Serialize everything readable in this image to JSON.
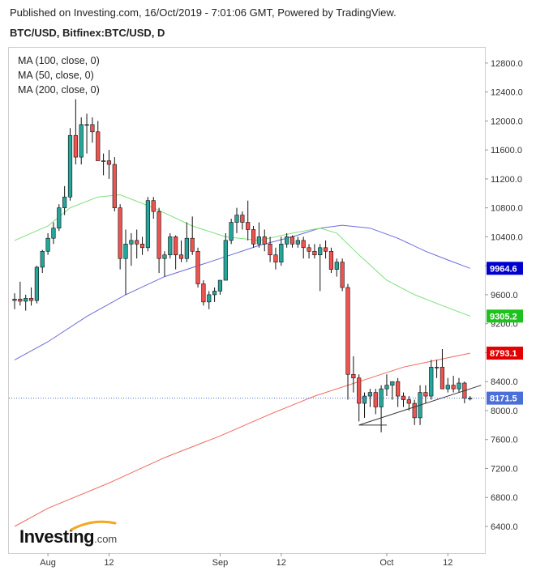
{
  "header": {
    "published": "Published on Investing.com, 16/Oct/2019 - 7:01:06 GMT, Powered by TradingView.",
    "symbol": "BTC/USD, Bitfinex:BTC/USD, D"
  },
  "legend": [
    "MA (100, close, 0)",
    "MA (50, close, 0)",
    "MA (200, close, 0)"
  ],
  "branding": {
    "name": "Investing",
    "suffix": ".com"
  },
  "colors": {
    "up": "#26a69a",
    "down": "#ef5350",
    "ma50": "#7ee07e",
    "ma100": "#6b6bdd",
    "ma200": "#f0685f",
    "badge_current": "#4a6fd8",
    "badge_ma100": "#0000cc",
    "badge_ma50": "#1ec21e",
    "badge_ma200": "#e00000"
  },
  "chart_data": {
    "type": "candlestick",
    "ylim": [
      6200,
      13000
    ],
    "yticks": [
      6400,
      6800,
      7200,
      7600,
      8000,
      8400,
      8800,
      9200,
      9600,
      10000,
      10400,
      10800,
      11200,
      11600,
      12000,
      12400,
      12800
    ],
    "xticks": [
      {
        "label": "Aug",
        "date": "2019-08-01"
      },
      {
        "label": "12",
        "date": "2019-08-12"
      },
      {
        "label": "Sep",
        "date": "2019-09-01"
      },
      {
        "label": "12",
        "date": "2019-09-12"
      },
      {
        "label": "Oct",
        "date": "2019-10-01"
      },
      {
        "label": "12",
        "date": "2019-10-12"
      }
    ],
    "date_start": "2019-07-26",
    "price_badges": [
      {
        "name": "ma100-value",
        "value": "9964.6",
        "y": 9964.6,
        "color": "#0000cc"
      },
      {
        "name": "ma50-value",
        "value": "9305.2",
        "y": 9305.2,
        "color": "#1ec21e"
      },
      {
        "name": "ma200-value",
        "value": "8793.1",
        "y": 8793.1,
        "color": "#e00000"
      },
      {
        "name": "last-price",
        "value": "8171.5",
        "y": 8171.5,
        "color": "#4a6fd8"
      }
    ],
    "last_price": 8171.5,
    "candles": [
      {
        "date": "2019-07-26",
        "o": 9520,
        "h": 9620,
        "l": 9400,
        "c": 9540
      },
      {
        "date": "2019-07-27",
        "o": 9540,
        "h": 9780,
        "l": 9450,
        "c": 9510
      },
      {
        "date": "2019-07-28",
        "o": 9510,
        "h": 9600,
        "l": 9380,
        "c": 9550
      },
      {
        "date": "2019-07-29",
        "o": 9550,
        "h": 9700,
        "l": 9450,
        "c": 9520
      },
      {
        "date": "2019-07-30",
        "o": 9520,
        "h": 10000,
        "l": 9480,
        "c": 9980
      },
      {
        "date": "2019-07-31",
        "o": 9980,
        "h": 10220,
        "l": 9900,
        "c": 10200
      },
      {
        "date": "2019-08-01",
        "o": 10200,
        "h": 10450,
        "l": 10150,
        "c": 10380
      },
      {
        "date": "2019-08-02",
        "o": 10380,
        "h": 10600,
        "l": 10300,
        "c": 10520
      },
      {
        "date": "2019-08-03",
        "o": 10520,
        "h": 10850,
        "l": 10480,
        "c": 10800
      },
      {
        "date": "2019-08-04",
        "o": 10800,
        "h": 11100,
        "l": 10700,
        "c": 10950
      },
      {
        "date": "2019-08-05",
        "o": 10950,
        "h": 11900,
        "l": 10900,
        "c": 11800
      },
      {
        "date": "2019-08-06",
        "o": 11800,
        "h": 12300,
        "l": 11400,
        "c": 11500
      },
      {
        "date": "2019-08-07",
        "o": 11500,
        "h": 12050,
        "l": 11400,
        "c": 11950
      },
      {
        "date": "2019-08-08",
        "o": 11950,
        "h": 12100,
        "l": 11550,
        "c": 11950
      },
      {
        "date": "2019-08-09",
        "o": 11950,
        "h": 12050,
        "l": 11700,
        "c": 11850
      },
      {
        "date": "2019-08-10",
        "o": 11850,
        "h": 12000,
        "l": 11450,
        "c": 11450
      },
      {
        "date": "2019-08-11",
        "o": 11450,
        "h": 11550,
        "l": 11250,
        "c": 11450
      },
      {
        "date": "2019-08-12",
        "o": 11450,
        "h": 11600,
        "l": 11200,
        "c": 11400
      },
      {
        "date": "2019-08-13",
        "o": 11400,
        "h": 11500,
        "l": 10750,
        "c": 10800
      },
      {
        "date": "2019-08-14",
        "o": 10800,
        "h": 10850,
        "l": 9950,
        "c": 10100
      },
      {
        "date": "2019-08-15",
        "o": 10100,
        "h": 10500,
        "l": 9600,
        "c": 10300
      },
      {
        "date": "2019-08-16",
        "o": 10300,
        "h": 10450,
        "l": 10000,
        "c": 10350
      },
      {
        "date": "2019-08-17",
        "o": 10350,
        "h": 10500,
        "l": 10100,
        "c": 10300
      },
      {
        "date": "2019-08-18",
        "o": 10300,
        "h": 10400,
        "l": 10150,
        "c": 10250
      },
      {
        "date": "2019-08-19",
        "o": 10250,
        "h": 10950,
        "l": 10200,
        "c": 10900
      },
      {
        "date": "2019-08-20",
        "o": 10900,
        "h": 10950,
        "l": 10650,
        "c": 10750
      },
      {
        "date": "2019-08-21",
        "o": 10750,
        "h": 10800,
        "l": 9900,
        "c": 10100
      },
      {
        "date": "2019-08-22",
        "o": 10100,
        "h": 10200,
        "l": 9850,
        "c": 10150
      },
      {
        "date": "2019-08-23",
        "o": 10150,
        "h": 10450,
        "l": 10100,
        "c": 10400
      },
      {
        "date": "2019-08-24",
        "o": 10400,
        "h": 10420,
        "l": 9950,
        "c": 10150
      },
      {
        "date": "2019-08-25",
        "o": 10150,
        "h": 10350,
        "l": 10050,
        "c": 10100
      },
      {
        "date": "2019-08-26",
        "o": 10100,
        "h": 10600,
        "l": 10050,
        "c": 10380
      },
      {
        "date": "2019-08-27",
        "o": 10380,
        "h": 10680,
        "l": 10150,
        "c": 10200
      },
      {
        "date": "2019-08-28",
        "o": 10200,
        "h": 10250,
        "l": 9700,
        "c": 9750
      },
      {
        "date": "2019-08-29",
        "o": 9750,
        "h": 9800,
        "l": 9450,
        "c": 9500
      },
      {
        "date": "2019-08-30",
        "o": 9500,
        "h": 9650,
        "l": 9400,
        "c": 9600
      },
      {
        "date": "2019-08-31",
        "o": 9600,
        "h": 9700,
        "l": 9500,
        "c": 9650
      },
      {
        "date": "2019-09-01",
        "o": 9650,
        "h": 9800,
        "l": 9600,
        "c": 9800
      },
      {
        "date": "2019-09-02",
        "o": 9800,
        "h": 10450,
        "l": 9800,
        "c": 10350
      },
      {
        "date": "2019-09-03",
        "o": 10350,
        "h": 10650,
        "l": 10300,
        "c": 10600
      },
      {
        "date": "2019-09-04",
        "o": 10600,
        "h": 10800,
        "l": 10450,
        "c": 10700
      },
      {
        "date": "2019-09-05",
        "o": 10700,
        "h": 10750,
        "l": 10500,
        "c": 10600
      },
      {
        "date": "2019-09-06",
        "o": 10600,
        "h": 10900,
        "l": 10350,
        "c": 10500
      },
      {
        "date": "2019-09-07",
        "o": 10500,
        "h": 10550,
        "l": 10250,
        "c": 10300
      },
      {
        "date": "2019-09-08",
        "o": 10300,
        "h": 10600,
        "l": 10250,
        "c": 10400
      },
      {
        "date": "2019-09-09",
        "o": 10400,
        "h": 10500,
        "l": 10200,
        "c": 10300
      },
      {
        "date": "2019-09-10",
        "o": 10300,
        "h": 10400,
        "l": 10050,
        "c": 10150
      },
      {
        "date": "2019-09-11",
        "o": 10150,
        "h": 10250,
        "l": 9950,
        "c": 10050
      },
      {
        "date": "2019-09-12",
        "o": 10050,
        "h": 10400,
        "l": 10000,
        "c": 10300
      },
      {
        "date": "2019-09-13",
        "o": 10300,
        "h": 10450,
        "l": 10250,
        "c": 10400
      },
      {
        "date": "2019-09-14",
        "o": 10400,
        "h": 10420,
        "l": 10250,
        "c": 10300
      },
      {
        "date": "2019-09-15",
        "o": 10300,
        "h": 10400,
        "l": 10250,
        "c": 10350
      },
      {
        "date": "2019-09-16",
        "o": 10350,
        "h": 10400,
        "l": 10100,
        "c": 10250
      },
      {
        "date": "2019-09-17",
        "o": 10250,
        "h": 10300,
        "l": 10100,
        "c": 10200
      },
      {
        "date": "2019-09-18",
        "o": 10200,
        "h": 10300,
        "l": 10100,
        "c": 10150
      },
      {
        "date": "2019-09-19",
        "o": 10150,
        "h": 10300,
        "l": 9650,
        "c": 10250
      },
      {
        "date": "2019-09-20",
        "o": 10250,
        "h": 10350,
        "l": 10100,
        "c": 10200
      },
      {
        "date": "2019-09-21",
        "o": 10200,
        "h": 10250,
        "l": 9900,
        "c": 9950
      },
      {
        "date": "2019-09-22",
        "o": 9950,
        "h": 10100,
        "l": 9850,
        "c": 10050
      },
      {
        "date": "2019-09-23",
        "o": 10050,
        "h": 10100,
        "l": 9650,
        "c": 9700
      },
      {
        "date": "2019-09-24",
        "o": 9700,
        "h": 9750,
        "l": 8150,
        "c": 8500
      },
      {
        "date": "2019-09-25",
        "o": 8500,
        "h": 8750,
        "l": 8250,
        "c": 8450
      },
      {
        "date": "2019-09-26",
        "o": 8450,
        "h": 8500,
        "l": 7850,
        "c": 8100
      },
      {
        "date": "2019-09-27",
        "o": 8100,
        "h": 8250,
        "l": 7900,
        "c": 8200
      },
      {
        "date": "2019-09-28",
        "o": 8200,
        "h": 8300,
        "l": 8050,
        "c": 8250
      },
      {
        "date": "2019-09-29",
        "o": 8250,
        "h": 8300,
        "l": 7950,
        "c": 8050
      },
      {
        "date": "2019-09-30",
        "o": 8050,
        "h": 8350,
        "l": 7700,
        "c": 8300
      },
      {
        "date": "2019-10-01",
        "o": 8300,
        "h": 8500,
        "l": 8200,
        "c": 8350
      },
      {
        "date": "2019-10-02",
        "o": 8350,
        "h": 8400,
        "l": 8150,
        "c": 8400
      },
      {
        "date": "2019-10-03",
        "o": 8400,
        "h": 8450,
        "l": 8050,
        "c": 8200
      },
      {
        "date": "2019-10-04",
        "o": 8200,
        "h": 8250,
        "l": 8050,
        "c": 8150
      },
      {
        "date": "2019-10-05",
        "o": 8150,
        "h": 8200,
        "l": 8000,
        "c": 8100
      },
      {
        "date": "2019-10-06",
        "o": 8100,
        "h": 8150,
        "l": 7800,
        "c": 7900
      },
      {
        "date": "2019-10-07",
        "o": 7900,
        "h": 8350,
        "l": 7800,
        "c": 8250
      },
      {
        "date": "2019-10-08",
        "o": 8250,
        "h": 8350,
        "l": 8100,
        "c": 8200
      },
      {
        "date": "2019-10-09",
        "o": 8200,
        "h": 8700,
        "l": 8150,
        "c": 8600
      },
      {
        "date": "2019-10-10",
        "o": 8600,
        "h": 8700,
        "l": 8450,
        "c": 8600
      },
      {
        "date": "2019-10-11",
        "o": 8600,
        "h": 8850,
        "l": 8300,
        "c": 8300
      },
      {
        "date": "2019-10-12",
        "o": 8300,
        "h": 8450,
        "l": 8250,
        "c": 8350
      },
      {
        "date": "2019-10-13",
        "o": 8350,
        "h": 8480,
        "l": 8250,
        "c": 8300
      },
      {
        "date": "2019-10-14",
        "o": 8300,
        "h": 8450,
        "l": 8250,
        "c": 8380
      },
      {
        "date": "2019-10-15",
        "o": 8380,
        "h": 8400,
        "l": 8100,
        "c": 8170
      },
      {
        "date": "2019-10-16",
        "o": 8170,
        "h": 8200,
        "l": 8140,
        "c": 8171.5
      }
    ],
    "ma50": [
      {
        "date": "2019-07-26",
        "v": 10350
      },
      {
        "date": "2019-08-01",
        "v": 10550
      },
      {
        "date": "2019-08-05",
        "v": 10800
      },
      {
        "date": "2019-08-10",
        "v": 10950
      },
      {
        "date": "2019-08-14",
        "v": 10980
      },
      {
        "date": "2019-08-20",
        "v": 10800
      },
      {
        "date": "2019-08-27",
        "v": 10550
      },
      {
        "date": "2019-09-02",
        "v": 10400
      },
      {
        "date": "2019-09-08",
        "v": 10350
      },
      {
        "date": "2019-09-14",
        "v": 10450
      },
      {
        "date": "2019-09-19",
        "v": 10520
      },
      {
        "date": "2019-09-22",
        "v": 10450
      },
      {
        "date": "2019-09-26",
        "v": 10150
      },
      {
        "date": "2019-10-01",
        "v": 9800
      },
      {
        "date": "2019-10-06",
        "v": 9600
      },
      {
        "date": "2019-10-11",
        "v": 9450
      },
      {
        "date": "2019-10-16",
        "v": 9305.2
      }
    ],
    "ma100": [
      {
        "date": "2019-07-26",
        "v": 8700
      },
      {
        "date": "2019-08-01",
        "v": 8950
      },
      {
        "date": "2019-08-08",
        "v": 9300
      },
      {
        "date": "2019-08-15",
        "v": 9600
      },
      {
        "date": "2019-08-22",
        "v": 9850
      },
      {
        "date": "2019-09-01",
        "v": 10100
      },
      {
        "date": "2019-09-08",
        "v": 10280
      },
      {
        "date": "2019-09-14",
        "v": 10400
      },
      {
        "date": "2019-09-19",
        "v": 10520
      },
      {
        "date": "2019-09-23",
        "v": 10560
      },
      {
        "date": "2019-09-28",
        "v": 10520
      },
      {
        "date": "2019-10-03",
        "v": 10380
      },
      {
        "date": "2019-10-08",
        "v": 10200
      },
      {
        "date": "2019-10-12",
        "v": 10080
      },
      {
        "date": "2019-10-16",
        "v": 9964.6
      }
    ],
    "ma200": [
      {
        "date": "2019-07-26",
        "v": 6400
      },
      {
        "date": "2019-08-01",
        "v": 6650
      },
      {
        "date": "2019-08-12",
        "v": 7000
      },
      {
        "date": "2019-08-22",
        "v": 7350
      },
      {
        "date": "2019-09-01",
        "v": 7650
      },
      {
        "date": "2019-09-10",
        "v": 7950
      },
      {
        "date": "2019-09-18",
        "v": 8200
      },
      {
        "date": "2019-09-26",
        "v": 8400
      },
      {
        "date": "2019-10-04",
        "v": 8600
      },
      {
        "date": "2019-10-12",
        "v": 8730
      },
      {
        "date": "2019-10-16",
        "v": 8793.1
      }
    ],
    "trendlines": [
      {
        "from": {
          "date": "2019-09-26",
          "v": 7800
        },
        "to": {
          "date": "2019-10-18",
          "v": 8350
        }
      },
      {
        "from": {
          "date": "2019-09-26",
          "v": 7800
        },
        "to": {
          "date": "2019-10-01",
          "v": 7800
        }
      }
    ]
  }
}
